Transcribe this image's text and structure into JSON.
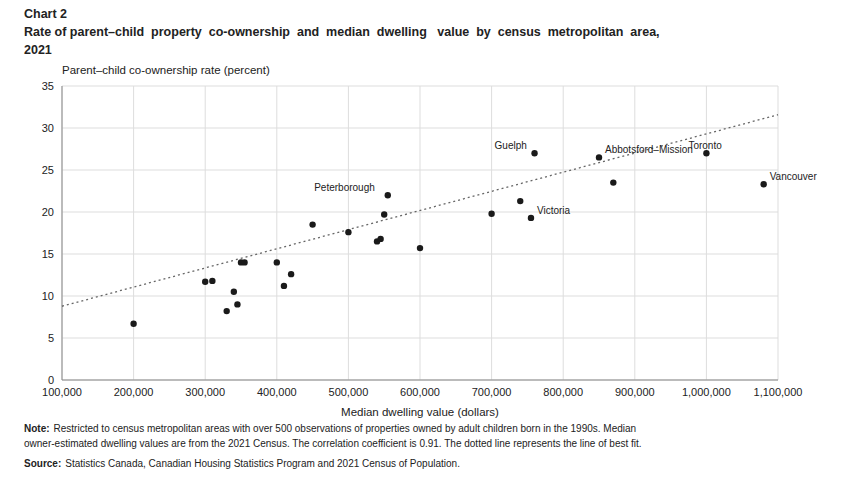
{
  "chart_data": {
    "type": "scatter",
    "title": [
      "Chart 2",
      "Rate of parent–child  property  co-ownership  and  median  dwelling   value  by  census  metropolitan  area,",
      "2021"
    ],
    "y_label": "Parent–child co-ownership rate (percent)",
    "x_label": "Median dwelling value (dollars)",
    "x": [
      200000,
      300000,
      310000,
      330000,
      340000,
      345000,
      350000,
      355000,
      400000,
      410000,
      420000,
      450000,
      500000,
      540000,
      545000,
      550000,
      555000,
      600000,
      700000,
      740000,
      755000,
      760000,
      850000,
      870000,
      1000000,
      1080000
    ],
    "values": [
      6.7,
      11.7,
      11.8,
      8.2,
      10.5,
      9.0,
      14.0,
      14.0,
      14.0,
      11.2,
      12.6,
      18.5,
      17.6,
      16.5,
      16.8,
      19.7,
      22.0,
      15.7,
      19.8,
      21.3,
      19.3,
      27.0,
      26.5,
      23.5,
      27.0,
      23.3
    ],
    "color": "#1a1a1a",
    "marker": "circle",
    "trendline": {
      "x": [
        100000,
        1100000
      ],
      "values": [
        8.78,
        31.58
      ],
      "color": "#666666",
      "line_style": "dotted"
    },
    "annotations": [
      {
        "text": "Peterborough",
        "x": 550000,
        "y": 22.0
      },
      {
        "text": "Guelph",
        "x": 760000,
        "y": 27.0
      },
      {
        "text": "Abbotsford–Mission",
        "x": 850000,
        "y": 26.5
      },
      {
        "text": "Victoria",
        "x": 755000,
        "y": 19.3
      },
      {
        "text": "Toronto",
        "x": 1000000,
        "y": 27.0
      },
      {
        "text": "Vancouver",
        "x": 1080000,
        "y": 23.3
      }
    ],
    "xlim": [
      100000,
      1100000
    ],
    "ylim": [
      0,
      35
    ],
    "xticks": [
      {
        "value": 100000,
        "label": "100,000"
      },
      {
        "value": 200000,
        "label": "200,000"
      },
      {
        "value": 300000,
        "label": "300,000"
      },
      {
        "value": 400000,
        "label": "400,000"
      },
      {
        "value": 500000,
        "label": "500,000"
      },
      {
        "value": 600000,
        "label": "600,000"
      },
      {
        "value": 700000,
        "label": "700,000"
      },
      {
        "value": 800000,
        "label": "800,000"
      },
      {
        "value": 900000,
        "label": "900,000"
      },
      {
        "value": 1000000,
        "label": "1,000,000"
      },
      {
        "value": 1100000,
        "label": "1,100,000"
      }
    ],
    "yticks": [
      0,
      5,
      10,
      15,
      20,
      25,
      30,
      35
    ],
    "grid": true,
    "notes": [
      {
        "label": "Note:",
        "text": [
          "Restricted to census metropolitan areas with over 500 observations of properties owned by adult children born in the 1990s. Median",
          "owner-estimated dwelling values are from the 2021 Census. The correlation coefficient is 0.91. The dotted line represents the line of best fit."
        ]
      },
      {
        "label": "Source:",
        "text": [
          "Statistics Canada, Canadian Housing Statistics Program and 2021 Census of Population."
        ]
      }
    ]
  }
}
